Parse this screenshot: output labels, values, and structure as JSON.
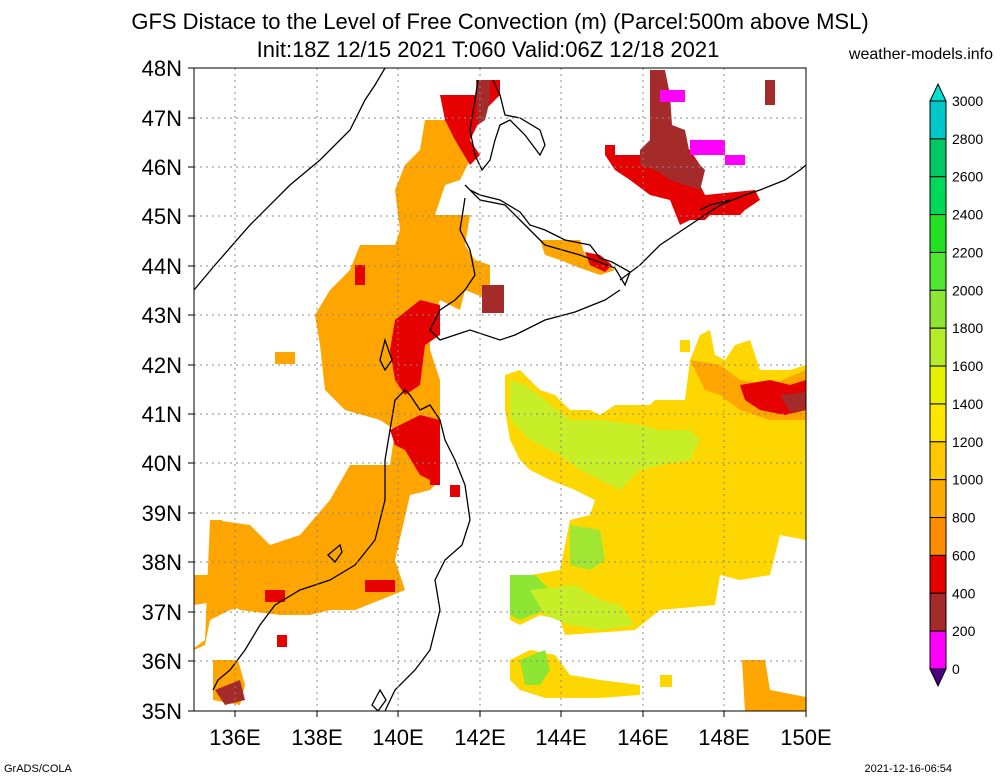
{
  "title_line1": "GFS Distace to the Level of Free Convection (m) (Parcel:500m above MSL)",
  "title_line2": "Init:18Z 12/15 2021 T:060 Valid:06Z 12/18 2021",
  "site": "weather-models.info",
  "footer_left": "GrADS/COLA",
  "footer_right": "2021-12-16-06:54",
  "map": {
    "lat_labels": [
      "48N",
      "47N",
      "46N",
      "45N",
      "44N",
      "43N",
      "42N",
      "41N",
      "40N",
      "39N",
      "38N",
      "37N",
      "36N",
      "35N"
    ],
    "lon_labels": [
      "136E",
      "138E",
      "140E",
      "142E",
      "144E",
      "146E",
      "148E",
      "150E"
    ],
    "lat_range": [
      35,
      48
    ],
    "lon_range": [
      135,
      150
    ]
  },
  "colorbar": {
    "labels": [
      "3000",
      "2800",
      "2600",
      "2400",
      "2200",
      "2000",
      "1800",
      "1600",
      "1400",
      "1200",
      "1000",
      "800",
      "600",
      "400",
      "200",
      "0"
    ],
    "colors": [
      "#00e0d0",
      "#00c8c8",
      "#00c864",
      "#00d85a",
      "#22e022",
      "#50e632",
      "#8ce632",
      "#b4ee28",
      "#e6f000",
      "#ffe600",
      "#ffc800",
      "#ffaa00",
      "#ff8c00",
      "#e60000",
      "#a52a2a",
      "#ff00ff",
      "#4b0082"
    ]
  },
  "fields": {
    "colors_meaning": {
      "magenta": "#ff00ff",
      "brown": "#a52a2a",
      "red": "#e60000",
      "orange": "#ffa500",
      "yellow": "#ffd700",
      "yellowgreen": "#c8ee28",
      "green": "#8ce632"
    }
  }
}
